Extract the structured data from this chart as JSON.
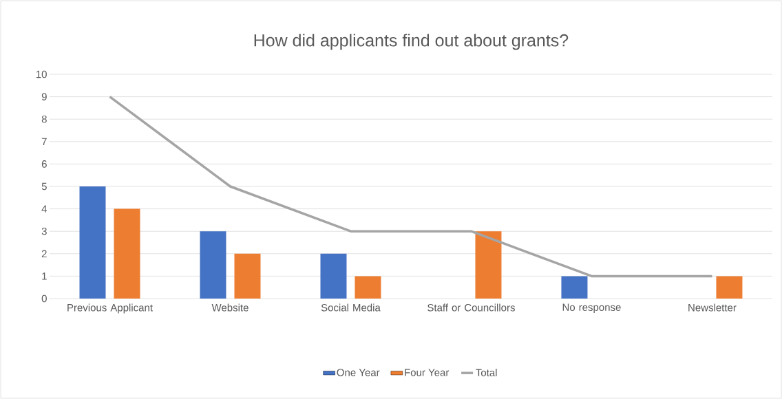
{
  "chart_data": {
    "type": "bar",
    "title": "How did applicants find out about grants?",
    "categories": [
      "Previous Applicant",
      "Website",
      "Social Media",
      "Staff or Councillors",
      "No response",
      "Newsletter"
    ],
    "series": [
      {
        "name": "One Year",
        "color": "#4472c4",
        "values": [
          5,
          3,
          2,
          null,
          1,
          null
        ]
      },
      {
        "name": "Four Year",
        "color": "#ed7d31",
        "values": [
          4,
          2,
          1,
          3,
          null,
          1
        ]
      },
      {
        "name": "Total",
        "type": "line",
        "color": "#a5a5a5",
        "values": [
          9,
          5,
          3,
          3,
          1,
          1
        ]
      }
    ],
    "ylim": [
      0,
      10
    ],
    "yticks": [
      0,
      1,
      2,
      3,
      4,
      5,
      6,
      7,
      8,
      9,
      10
    ],
    "grid": "y",
    "legend": "bottom"
  }
}
